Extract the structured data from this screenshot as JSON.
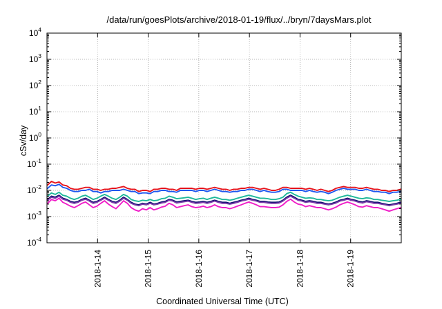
{
  "chart_data": {
    "type": "line",
    "title": "/data/run/goesPlots/archive/2018-01-19/flux/../bryn/7daysMars.plot",
    "xlabel": "Coordinated Universal Time (UTC)",
    "ylabel": "cSv/day",
    "y_scale": "log",
    "ylim_exponents": [
      -4,
      4
    ],
    "y_ticks": [
      {
        "base": "10",
        "exp": "4"
      },
      {
        "base": "10",
        "exp": "3"
      },
      {
        "base": "10",
        "exp": "2"
      },
      {
        "base": "10",
        "exp": "1"
      },
      {
        "base": "10",
        "exp": "0"
      },
      {
        "base": "10",
        "exp": "-1"
      },
      {
        "base": "10",
        "exp": "-2"
      },
      {
        "base": "10",
        "exp": "-3"
      },
      {
        "base": "10",
        "exp": "-4"
      }
    ],
    "x_ticks": [
      "2018-1-14",
      "2018-1-15",
      "2018-1-16",
      "2018-1-17",
      "2018-1-18",
      "2018-1-19"
    ],
    "xlim": [
      "2018-01-13T00:00",
      "2018-01-20T00:00"
    ],
    "grid": true,
    "legend": "none",
    "series": [
      {
        "color": "#e8141c",
        "values": [
          0.016,
          0.022,
          0.019,
          0.021,
          0.016,
          0.015,
          0.012,
          0.011,
          0.011,
          0.012,
          0.013,
          0.013,
          0.011,
          0.011,
          0.01,
          0.011,
          0.011,
          0.012,
          0.012,
          0.013,
          0.014,
          0.012,
          0.011,
          0.011,
          0.009,
          0.01,
          0.01,
          0.009,
          0.011,
          0.011,
          0.012,
          0.012,
          0.011,
          0.011,
          0.01,
          0.012,
          0.012,
          0.012,
          0.012,
          0.011,
          0.012,
          0.012,
          0.011,
          0.012,
          0.013,
          0.012,
          0.011,
          0.011,
          0.01,
          0.011,
          0.011,
          0.012,
          0.012,
          0.013,
          0.013,
          0.012,
          0.011,
          0.012,
          0.011,
          0.01,
          0.01,
          0.011,
          0.013,
          0.013,
          0.012,
          0.012,
          0.012,
          0.012,
          0.011,
          0.012,
          0.011,
          0.01,
          0.011,
          0.01,
          0.009,
          0.01,
          0.012,
          0.013,
          0.014,
          0.013,
          0.013,
          0.013,
          0.012,
          0.012,
          0.013,
          0.012,
          0.011,
          0.011,
          0.01,
          0.01,
          0.009,
          0.01,
          0.01,
          0.011
        ]
      },
      {
        "color": "#1f58f0",
        "values": [
          0.012,
          0.016,
          0.015,
          0.017,
          0.013,
          0.012,
          0.01,
          0.009,
          0.009,
          0.01,
          0.01,
          0.011,
          0.009,
          0.009,
          0.008,
          0.009,
          0.009,
          0.01,
          0.01,
          0.01,
          0.011,
          0.01,
          0.009,
          0.009,
          0.0075,
          0.008,
          0.008,
          0.0075,
          0.009,
          0.009,
          0.01,
          0.01,
          0.009,
          0.009,
          0.0085,
          0.01,
          0.01,
          0.01,
          0.01,
          0.009,
          0.01,
          0.01,
          0.009,
          0.01,
          0.011,
          0.01,
          0.009,
          0.009,
          0.0085,
          0.009,
          0.009,
          0.01,
          0.01,
          0.011,
          0.011,
          0.01,
          0.009,
          0.01,
          0.009,
          0.0085,
          0.0085,
          0.009,
          0.011,
          0.011,
          0.01,
          0.01,
          0.01,
          0.01,
          0.009,
          0.01,
          0.009,
          0.0085,
          0.009,
          0.0085,
          0.0075,
          0.0085,
          0.01,
          0.011,
          0.012,
          0.011,
          0.011,
          0.011,
          0.01,
          0.01,
          0.011,
          0.01,
          0.009,
          0.009,
          0.0085,
          0.0085,
          0.0075,
          0.0085,
          0.0085,
          0.009
        ]
      },
      {
        "color": "#1fb89a",
        "values": [
          0.006,
          0.008,
          0.007,
          0.0085,
          0.0065,
          0.006,
          0.005,
          0.0045,
          0.005,
          0.006,
          0.0065,
          0.0055,
          0.0045,
          0.005,
          0.006,
          0.007,
          0.006,
          0.005,
          0.0045,
          0.0055,
          0.007,
          0.006,
          0.0045,
          0.004,
          0.0038,
          0.0042,
          0.004,
          0.0045,
          0.004,
          0.0042,
          0.0048,
          0.005,
          0.006,
          0.0055,
          0.0048,
          0.005,
          0.0052,
          0.0055,
          0.005,
          0.0045,
          0.0048,
          0.005,
          0.0045,
          0.005,
          0.0055,
          0.005,
          0.0045,
          0.0045,
          0.0042,
          0.0045,
          0.005,
          0.0055,
          0.006,
          0.0065,
          0.006,
          0.0055,
          0.005,
          0.005,
          0.0048,
          0.0045,
          0.0045,
          0.0048,
          0.0055,
          0.0075,
          0.0085,
          0.007,
          0.006,
          0.0055,
          0.005,
          0.0052,
          0.005,
          0.0045,
          0.0045,
          0.0042,
          0.004,
          0.0042,
          0.0048,
          0.0055,
          0.006,
          0.0065,
          0.006,
          0.0055,
          0.005,
          0.0048,
          0.0052,
          0.005,
          0.0045,
          0.0045,
          0.0042,
          0.004,
          0.0038,
          0.004,
          0.0042,
          0.0045
        ]
      },
      {
        "color": "#101070",
        "values": [
          0.0045,
          0.006,
          0.0055,
          0.0065,
          0.005,
          0.0045,
          0.0038,
          0.0035,
          0.0038,
          0.0045,
          0.005,
          0.0042,
          0.0035,
          0.0038,
          0.0045,
          0.0055,
          0.0045,
          0.0038,
          0.0035,
          0.0042,
          0.0055,
          0.0045,
          0.0035,
          0.003,
          0.0028,
          0.0032,
          0.003,
          0.0035,
          0.003,
          0.0032,
          0.0036,
          0.0038,
          0.0045,
          0.0042,
          0.0036,
          0.0038,
          0.004,
          0.0042,
          0.0038,
          0.0035,
          0.0036,
          0.0038,
          0.0035,
          0.0038,
          0.0042,
          0.0038,
          0.0035,
          0.0035,
          0.0032,
          0.0035,
          0.0038,
          0.0042,
          0.0045,
          0.005,
          0.0045,
          0.0042,
          0.0038,
          0.0038,
          0.0036,
          0.0035,
          0.0035,
          0.0036,
          0.0042,
          0.0055,
          0.0065,
          0.0055,
          0.0045,
          0.0042,
          0.0038,
          0.004,
          0.0038,
          0.0035,
          0.0035,
          0.0032,
          0.003,
          0.0032,
          0.0036,
          0.0042,
          0.0045,
          0.005,
          0.0045,
          0.0042,
          0.0038,
          0.0036,
          0.004,
          0.0038,
          0.0035,
          0.0035,
          0.0032,
          0.003,
          0.0028,
          0.003,
          0.0032,
          0.0035
        ]
      },
      {
        "color": "#7a3aa8",
        "values": [
          0.0042,
          0.0055,
          0.005,
          0.006,
          0.0046,
          0.0042,
          0.0035,
          0.0032,
          0.0035,
          0.0042,
          0.0046,
          0.0039,
          0.0032,
          0.0035,
          0.0042,
          0.005,
          0.0042,
          0.0035,
          0.0032,
          0.0039,
          0.005,
          0.0042,
          0.0032,
          0.0028,
          0.0026,
          0.003,
          0.0028,
          0.0032,
          0.0028,
          0.003,
          0.0033,
          0.0035,
          0.0042,
          0.0039,
          0.0033,
          0.0035,
          0.0037,
          0.0039,
          0.0035,
          0.0032,
          0.0033,
          0.0035,
          0.0032,
          0.0035,
          0.0039,
          0.0035,
          0.0032,
          0.0032,
          0.003,
          0.0032,
          0.0035,
          0.0039,
          0.0042,
          0.0046,
          0.0042,
          0.0039,
          0.0035,
          0.0035,
          0.0033,
          0.0032,
          0.0032,
          0.0033,
          0.0039,
          0.005,
          0.006,
          0.005,
          0.0042,
          0.0039,
          0.0035,
          0.0037,
          0.0035,
          0.0032,
          0.0032,
          0.003,
          0.0028,
          0.003,
          0.0033,
          0.0039,
          0.0042,
          0.0046,
          0.0042,
          0.0039,
          0.0035,
          0.0033,
          0.0037,
          0.0035,
          0.0032,
          0.0032,
          0.003,
          0.0028,
          0.0026,
          0.0028,
          0.003,
          0.0032
        ]
      },
      {
        "color": "#f01ec8",
        "values": [
          0.0032,
          0.0045,
          0.004,
          0.005,
          0.0035,
          0.003,
          0.0025,
          0.0022,
          0.0026,
          0.0032,
          0.0036,
          0.0028,
          0.0022,
          0.0025,
          0.0032,
          0.004,
          0.003,
          0.0024,
          0.002,
          0.0028,
          0.004,
          0.0032,
          0.0022,
          0.0018,
          0.0016,
          0.002,
          0.0018,
          0.0022,
          0.0018,
          0.002,
          0.0023,
          0.0025,
          0.0032,
          0.0028,
          0.0022,
          0.0024,
          0.0026,
          0.0028,
          0.0024,
          0.0022,
          0.0023,
          0.0025,
          0.0022,
          0.0024,
          0.0028,
          0.0024,
          0.0022,
          0.0022,
          0.002,
          0.0022,
          0.0025,
          0.0028,
          0.0032,
          0.0036,
          0.0032,
          0.0028,
          0.0024,
          0.0024,
          0.0023,
          0.0022,
          0.0022,
          0.0023,
          0.0028,
          0.0038,
          0.0046,
          0.0036,
          0.003,
          0.0028,
          0.0024,
          0.0026,
          0.0024,
          0.0022,
          0.0022,
          0.002,
          0.0018,
          0.002,
          0.0023,
          0.0028,
          0.0032,
          0.0036,
          0.0032,
          0.0028,
          0.0024,
          0.0023,
          0.0026,
          0.0024,
          0.0022,
          0.0022,
          0.002,
          0.0018,
          0.0016,
          0.0018,
          0.002,
          0.0022
        ]
      }
    ]
  }
}
